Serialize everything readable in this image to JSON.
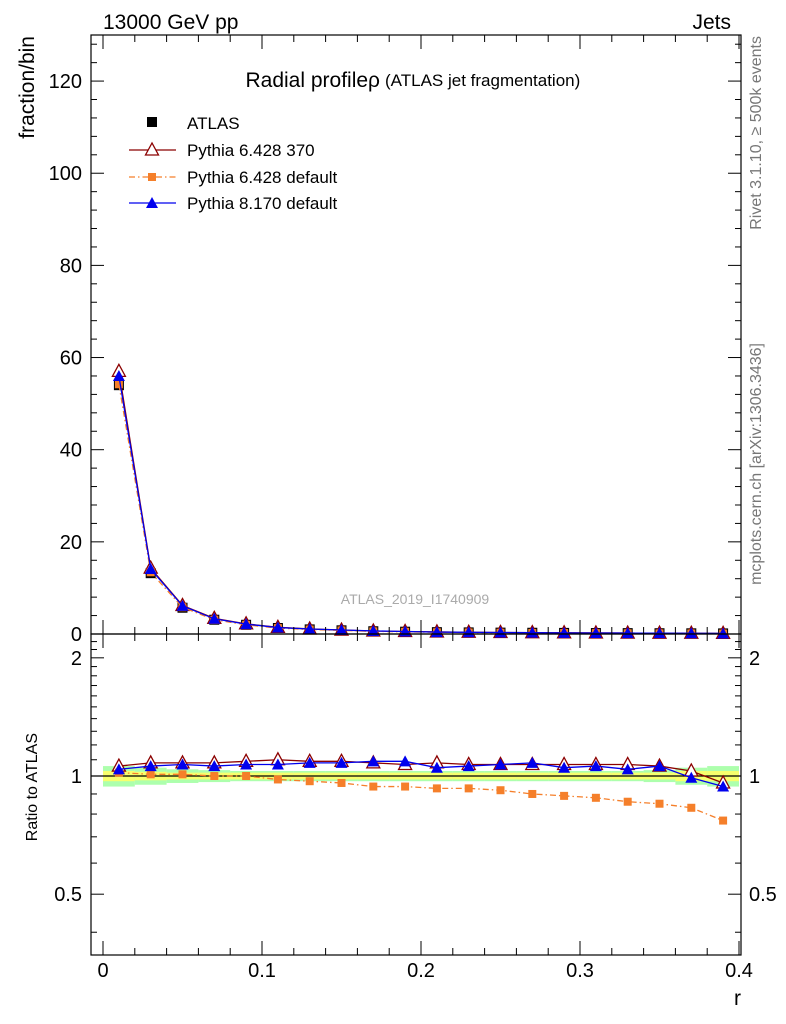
{
  "header": {
    "left": "13000 GeV pp",
    "right": "Jets"
  },
  "side_labels": {
    "top": "Rivet 3.1.10, ≥ 500k events",
    "bottom": "mcplots.cern.ch [arXiv:1306.3436]"
  },
  "chart_data": [
    {
      "type": "line",
      "panel": "main",
      "title": "Radial profileρ",
      "subtitle": "(ATLAS jet fragmentation)",
      "watermark": "ATLAS_2019_I1740909",
      "ylabel": "fraction/bin",
      "xlabel": "",
      "xlim": [
        0,
        0.4
      ],
      "ylim": [
        0,
        130
      ],
      "yticks": [
        0,
        20,
        40,
        60,
        80,
        100,
        120
      ],
      "legend_position": "top-left",
      "x": [
        0.01,
        0.03,
        0.05,
        0.07,
        0.09,
        0.11,
        0.13,
        0.15,
        0.17,
        0.19,
        0.21,
        0.23,
        0.25,
        0.27,
        0.29,
        0.31,
        0.33,
        0.35,
        0.37,
        0.39
      ],
      "series": [
        {
          "name": "ATLAS",
          "color": "#000000",
          "marker": "square",
          "line": "none",
          "values": [
            54.0,
            13.2,
            5.7,
            3.1,
            2.0,
            1.3,
            1.0,
            0.8,
            0.6,
            0.5,
            0.4,
            0.35,
            0.3,
            0.27,
            0.24,
            0.21,
            0.19,
            0.17,
            0.15,
            0.13
          ]
        },
        {
          "name": "Pythia 6.428 370",
          "color": "#8b0000",
          "marker": "open-triangle",
          "line": "solid",
          "values": [
            57.0,
            14.3,
            6.2,
            3.4,
            2.2,
            1.45,
            1.1,
            0.85,
            0.65,
            0.55,
            0.45,
            0.38,
            0.33,
            0.29,
            0.26,
            0.23,
            0.2,
            0.18,
            0.16,
            0.13
          ]
        },
        {
          "name": "Pythia 6.428 default",
          "color": "#f57f2a",
          "marker": "square",
          "line": "dashdot",
          "values": [
            54.2,
            13.4,
            5.8,
            3.1,
            2.0,
            1.28,
            0.97,
            0.77,
            0.57,
            0.47,
            0.37,
            0.33,
            0.28,
            0.24,
            0.21,
            0.18,
            0.16,
            0.14,
            0.12,
            0.1
          ]
        },
        {
          "name": "Pythia 8.170 default",
          "color": "#0000ee",
          "marker": "triangle",
          "line": "solid",
          "values": [
            56.0,
            14.1,
            6.1,
            3.3,
            2.15,
            1.4,
            1.08,
            0.86,
            0.66,
            0.55,
            0.42,
            0.37,
            0.32,
            0.29,
            0.25,
            0.22,
            0.2,
            0.18,
            0.15,
            0.12
          ]
        }
      ]
    },
    {
      "type": "line",
      "panel": "ratio",
      "ylabel": "Ratio to ATLAS",
      "xlabel": "r",
      "xlim": [
        0,
        0.4
      ],
      "ylim": [
        0.35,
        2.3
      ],
      "log_y": true,
      "yticks": [
        0.5,
        1,
        2
      ],
      "xticks": [
        0,
        0.1,
        0.2,
        0.3,
        0.4
      ],
      "x": [
        0.01,
        0.03,
        0.05,
        0.07,
        0.09,
        0.11,
        0.13,
        0.15,
        0.17,
        0.19,
        0.21,
        0.23,
        0.25,
        0.27,
        0.29,
        0.31,
        0.33,
        0.35,
        0.37,
        0.39
      ],
      "band": {
        "stat": [
          0.03,
          0.025,
          0.02,
          0.02,
          0.02,
          0.02,
          0.02,
          0.02,
          0.02,
          0.02,
          0.02,
          0.02,
          0.02,
          0.02,
          0.02,
          0.02,
          0.02,
          0.02,
          0.03,
          0.03
        ],
        "total": [
          0.06,
          0.05,
          0.04,
          0.035,
          0.03,
          0.03,
          0.03,
          0.03,
          0.03,
          0.03,
          0.03,
          0.03,
          0.03,
          0.03,
          0.03,
          0.03,
          0.03,
          0.035,
          0.05,
          0.06
        ],
        "stat_color": "#ffff66",
        "total_color": "#99ff99"
      },
      "series": [
        {
          "name": "Pythia 6.428 370",
          "color": "#8b0000",
          "marker": "open-triangle",
          "line": "solid",
          "values": [
            1.06,
            1.08,
            1.08,
            1.08,
            1.09,
            1.1,
            1.09,
            1.09,
            1.08,
            1.07,
            1.08,
            1.07,
            1.07,
            1.07,
            1.07,
            1.07,
            1.07,
            1.06,
            1.03,
            0.96
          ]
        },
        {
          "name": "Pythia 6.428 default",
          "color": "#f57f2a",
          "marker": "square",
          "line": "dashdot",
          "values": [
            1.02,
            1.01,
            1.01,
            1.0,
            1.0,
            0.98,
            0.97,
            0.96,
            0.94,
            0.94,
            0.93,
            0.93,
            0.92,
            0.9,
            0.89,
            0.88,
            0.86,
            0.85,
            0.83,
            0.77
          ]
        },
        {
          "name": "Pythia 8.170 default",
          "color": "#0000ee",
          "marker": "triangle",
          "line": "solid",
          "values": [
            1.04,
            1.06,
            1.07,
            1.06,
            1.07,
            1.07,
            1.08,
            1.08,
            1.09,
            1.09,
            1.05,
            1.06,
            1.07,
            1.08,
            1.05,
            1.06,
            1.04,
            1.06,
            0.99,
            0.94
          ]
        }
      ]
    }
  ]
}
